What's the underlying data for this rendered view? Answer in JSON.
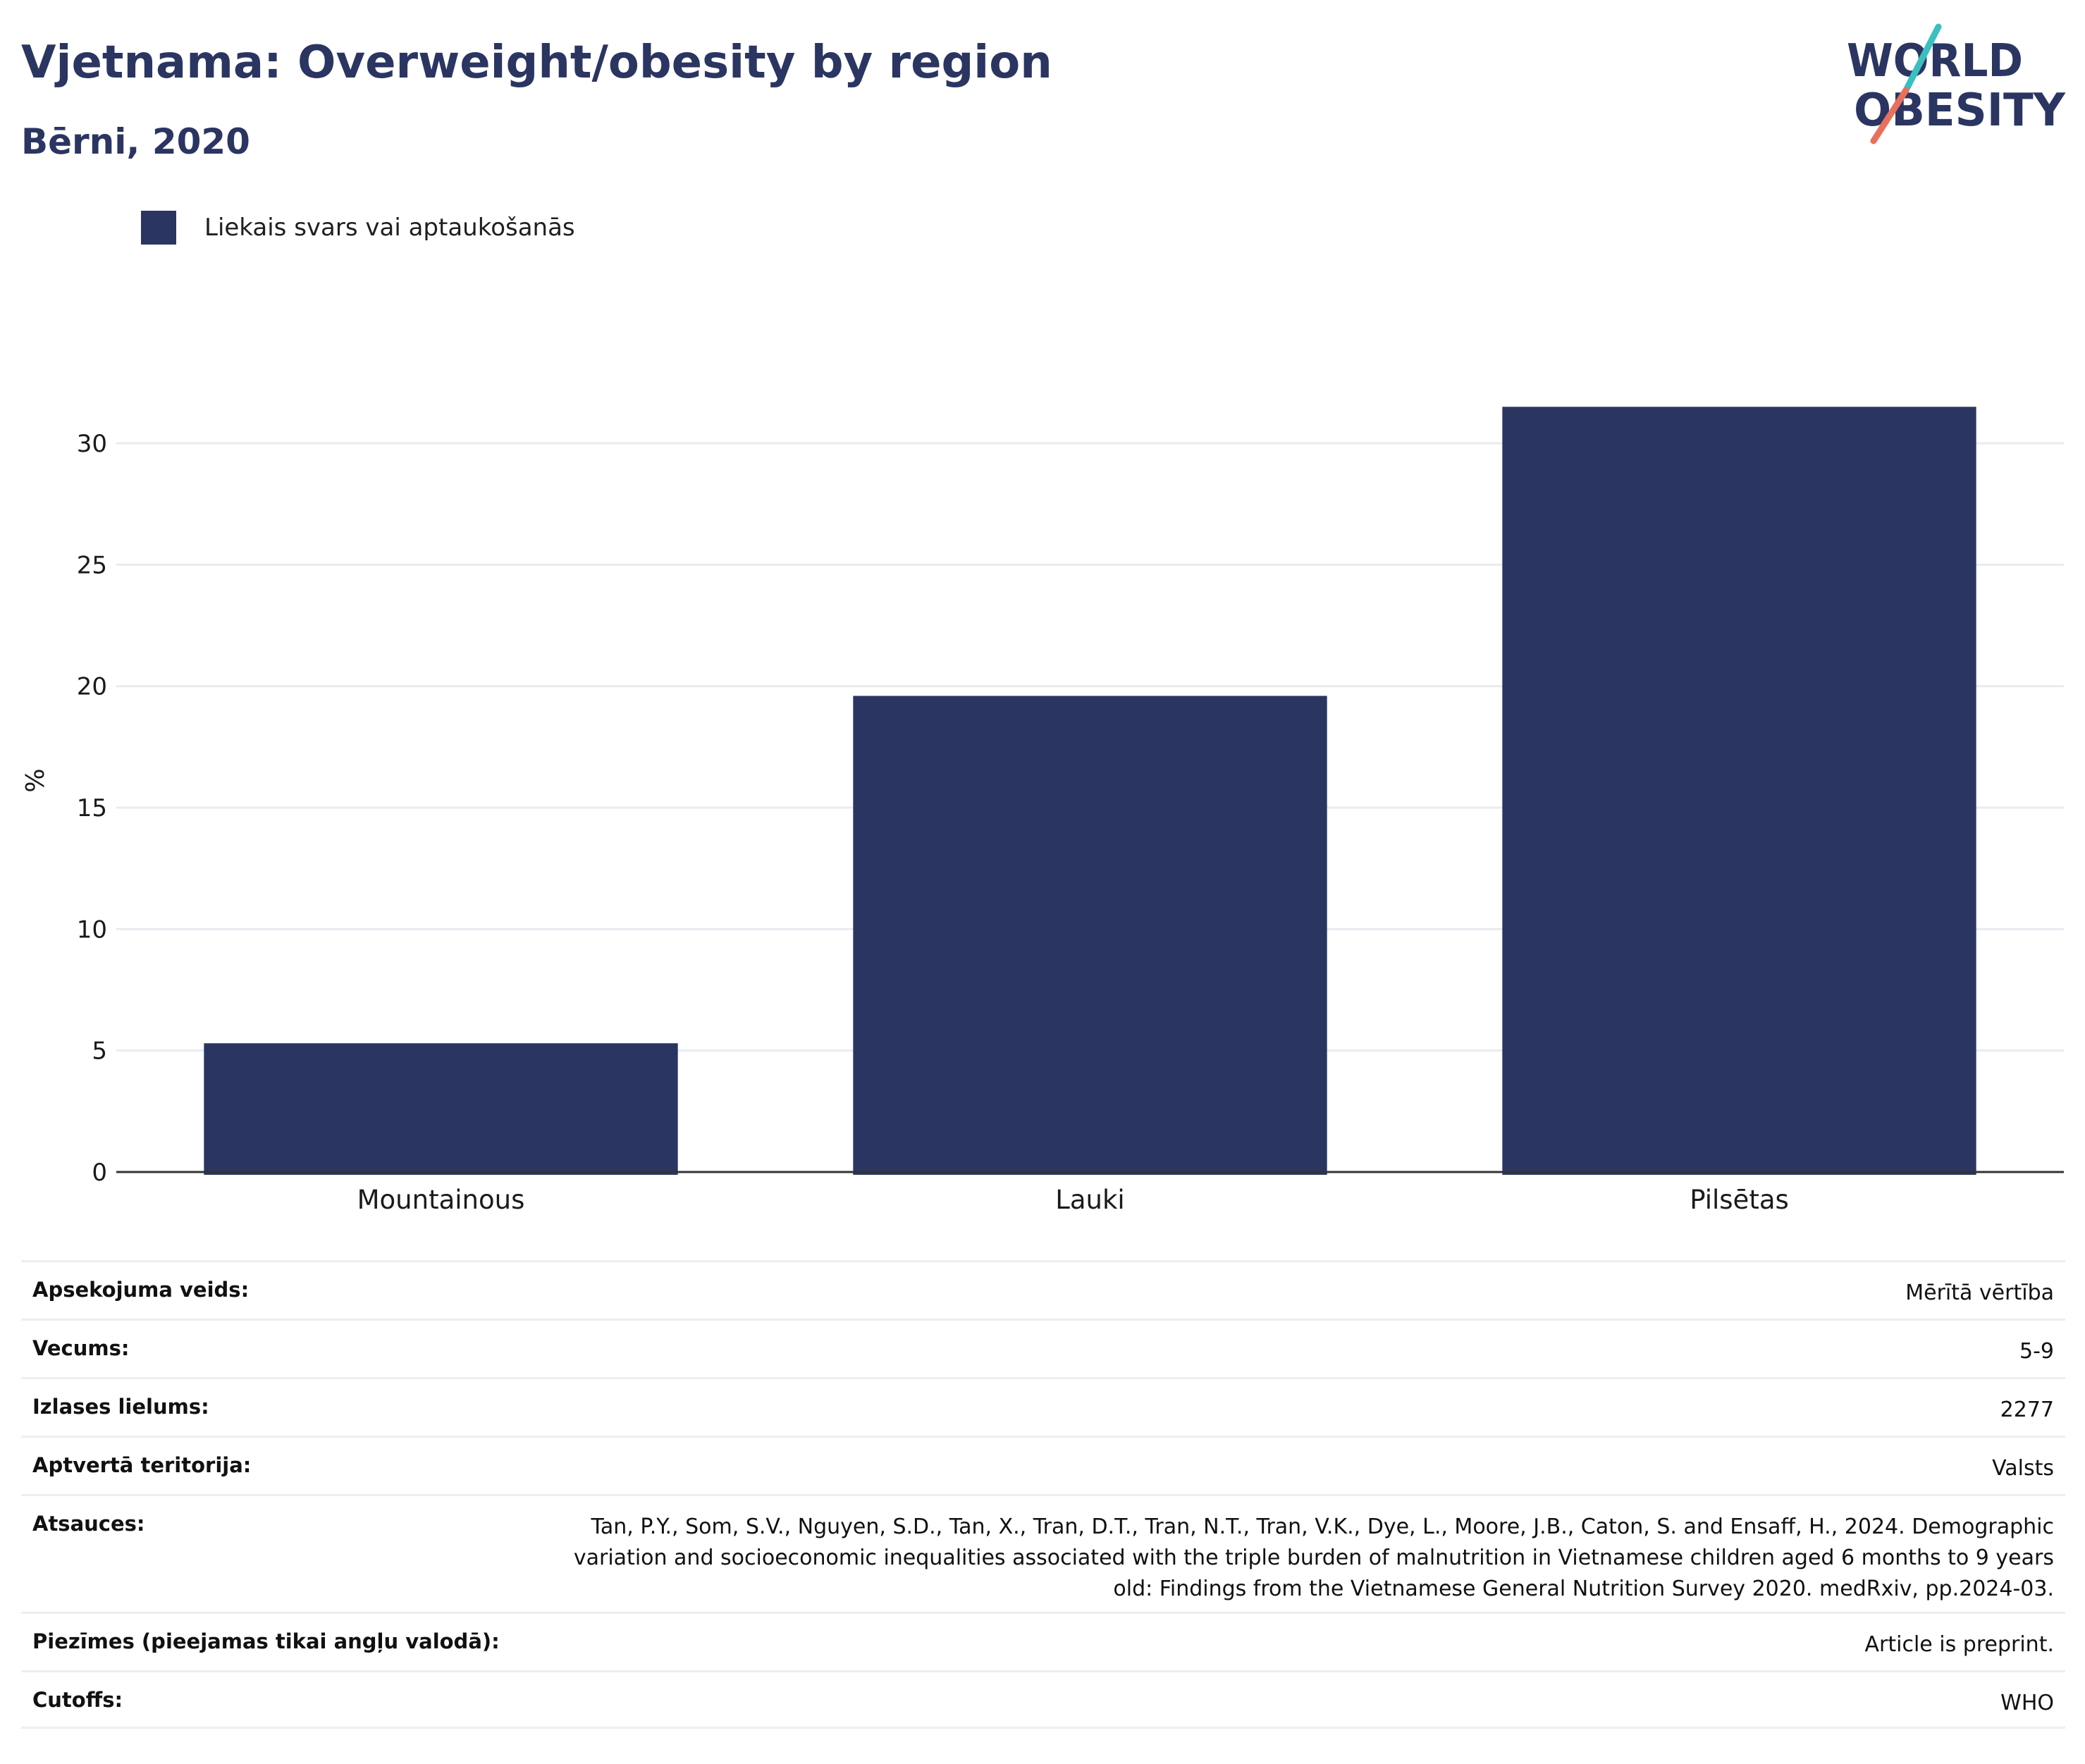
{
  "header": {
    "title": "Vjetnama: Overweight/obesity by region",
    "subtitle": "Bērni, 2020"
  },
  "logo": {
    "line1": "WORLD",
    "line2": "OBESITY",
    "colors": {
      "text": "#2b3562",
      "slash_top": "#3bbfbf",
      "slash_bottom": "#e8705d"
    }
  },
  "legend": {
    "items": [
      {
        "label": "Liekais svars vai aptaukošanās",
        "color": "#2a3562"
      }
    ]
  },
  "chart_data": {
    "type": "bar",
    "title": "Vjetnama: Overweight/obesity by region",
    "subtitle": "Bērni, 2020",
    "categories": [
      "Mountainous",
      "Lauki",
      "Pilsētas"
    ],
    "series": [
      {
        "name": "Liekais svars vai aptaukošanās",
        "values": [
          5.3,
          19.6,
          31.5
        ],
        "color": "#2a3562"
      }
    ],
    "xlabel": "",
    "ylabel": "%",
    "ylim": [
      0,
      32
    ],
    "yticks": [
      0,
      5,
      10,
      15,
      20,
      25,
      30
    ],
    "grid": true,
    "legend_position": "top-left",
    "colors": {
      "bar": "#2a3562",
      "grid": "#e9ebf0",
      "axis": "#333333",
      "tick_text": "#1a1a1a"
    }
  },
  "info": {
    "rows": [
      {
        "label": "Apsekojuma veids:",
        "value": "Mērītā vērtība"
      },
      {
        "label": "Vecums:",
        "value": "5-9"
      },
      {
        "label": "Izlases lielums:",
        "value": "2277"
      },
      {
        "label": "Aptvertā teritorija:",
        "value": "Valsts"
      },
      {
        "label": "Atsauces:",
        "value": "Tan, P.Y., Som, S.V., Nguyen, S.D., Tan, X., Tran, D.T., Tran, N.T., Tran, V.K., Dye, L., Moore, J.B., Caton, S. and Ensaff, H., 2024. Demographic variation and socioeconomic inequalities associated with the triple burden of malnutrition in Vietnamese children aged 6 months to 9 years old: Findings from the Vietnamese General Nutrition Survey 2020. medRxiv, pp.2024-03."
      },
      {
        "label": "Piezīmes (pieejamas tikai angļu valodā):",
        "value": "Article is preprint."
      },
      {
        "label": "Cutoffs:",
        "value": "WHO"
      }
    ]
  }
}
